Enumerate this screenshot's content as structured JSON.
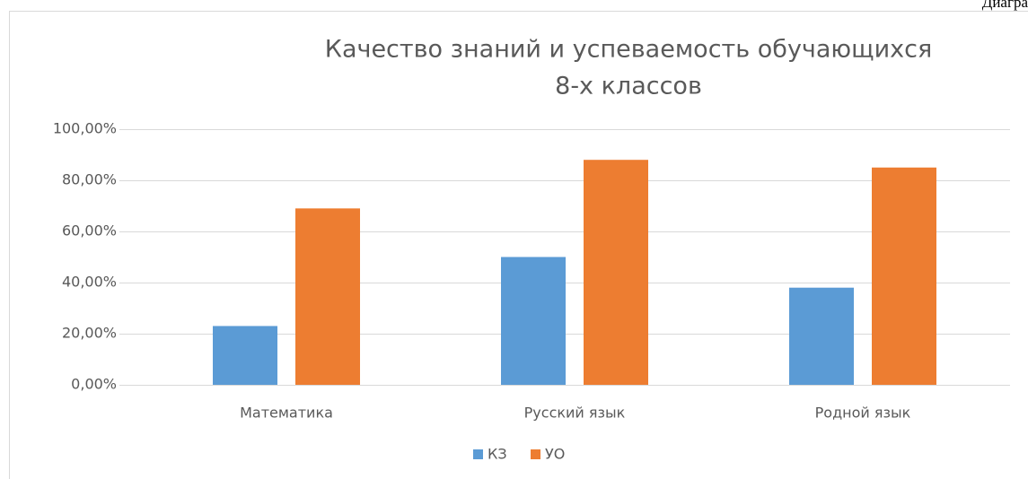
{
  "caption": "Диагра",
  "chart_data": {
    "type": "bar",
    "title": [
      "Качество знаний и успеваемость обучающихся",
      "8-х классов"
    ],
    "categories": [
      "Математика",
      "Русский язык",
      "Родной язык"
    ],
    "series": [
      {
        "name": "КЗ",
        "color": "#5b9bd5",
        "values": [
          23,
          50,
          38
        ]
      },
      {
        "name": "УО",
        "color": "#ed7d31",
        "values": [
          69,
          88,
          85
        ]
      }
    ],
    "ylim": [
      0,
      100
    ],
    "yticks": [
      {
        "value": 0,
        "label": "0,00%"
      },
      {
        "value": 20,
        "label": "20,00%"
      },
      {
        "value": 40,
        "label": "40,00%"
      },
      {
        "value": 60,
        "label": "60,00%"
      },
      {
        "value": 80,
        "label": "80,00%"
      },
      {
        "value": 100,
        "label": "100,00%"
      }
    ],
    "grid": true,
    "legend": "bottom"
  }
}
